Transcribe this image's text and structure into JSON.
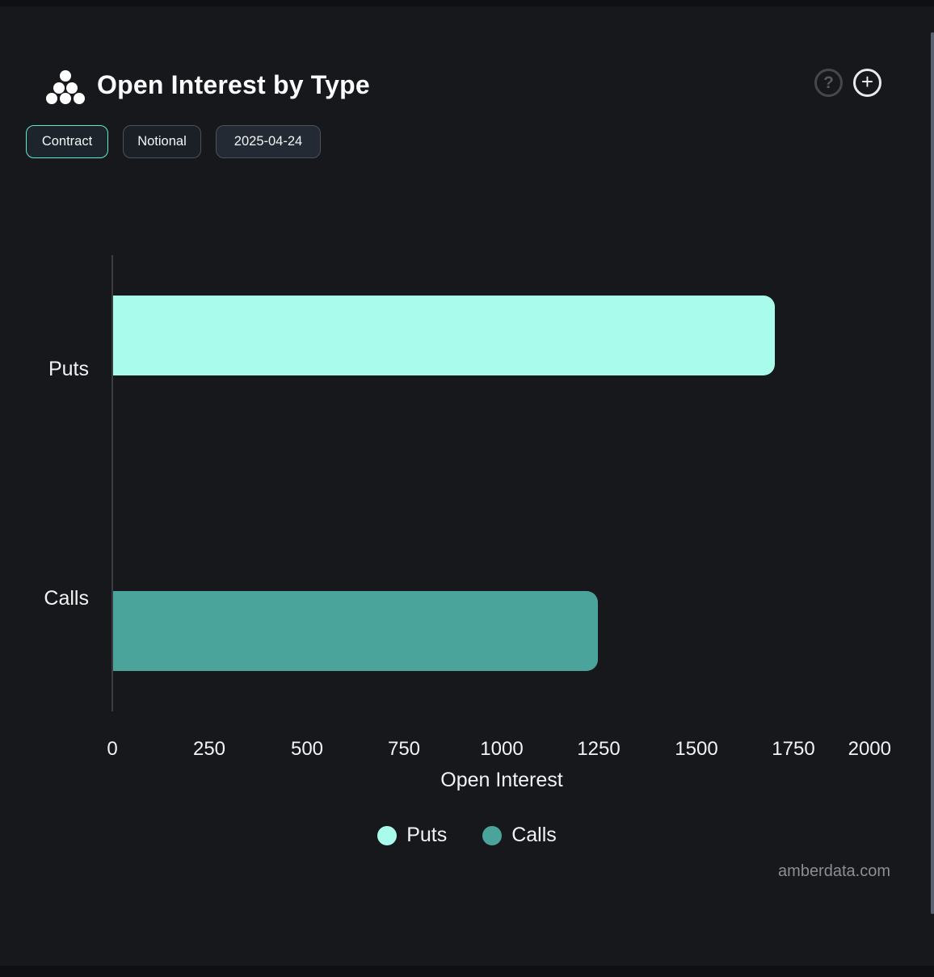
{
  "header": {
    "title": "Open Interest by Type",
    "help_glyph": "?",
    "add_glyph": "+"
  },
  "toolbar": {
    "buttons": [
      {
        "label": "Contract",
        "active": true
      },
      {
        "label": "Notional",
        "active": false
      },
      {
        "label": "2025-04-24",
        "active": false
      }
    ]
  },
  "chart_data": {
    "type": "bar",
    "orientation": "horizontal",
    "title": "Open Interest by Type",
    "categories": [
      "Puts",
      "Calls"
    ],
    "values": [
      1700,
      1245
    ],
    "bar_colors": [
      "#a9fbec",
      "#4aa49b"
    ],
    "xlabel": "Open Interest",
    "ylabel": "",
    "xlim": [
      0,
      2000
    ],
    "xticks": [
      "0",
      "250",
      "500",
      "750",
      "1000",
      "1250",
      "1500",
      "1750",
      "2000"
    ],
    "grid": false,
    "legend": [
      {
        "label": "Puts",
        "color": "#a9fbec"
      },
      {
        "label": "Calls",
        "color": "#4aa49b"
      }
    ],
    "legend_position": "bottom"
  },
  "footer": {
    "watermark": "amberdata.com"
  },
  "colors": {
    "background": "#16181b",
    "accent": "#5fe8d2",
    "axis": "#3a3d42",
    "text": "#f2f3f4",
    "muted_text": "#8b8e94"
  }
}
